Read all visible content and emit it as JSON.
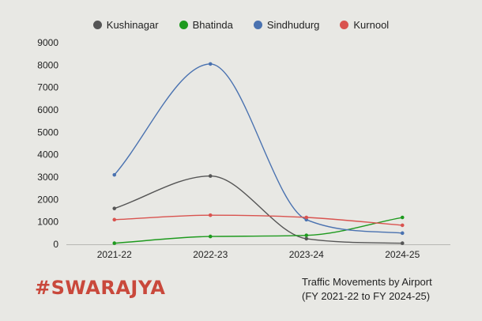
{
  "chart_data": {
    "type": "line",
    "categories": [
      "2021-22",
      "2022-23",
      "2023-24",
      "2024-25"
    ],
    "series": [
      {
        "name": "Kushinagar",
        "color": "#555555",
        "values": [
          1600,
          3050,
          250,
          50
        ]
      },
      {
        "name": "Bhatinda",
        "color": "#1e9a1e",
        "values": [
          50,
          350,
          400,
          1200
        ]
      },
      {
        "name": "Sindhudurg",
        "color": "#4a72b0",
        "values": [
          3100,
          8050,
          1100,
          500
        ]
      },
      {
        "name": "Kurnool",
        "color": "#d9534f",
        "values": [
          1100,
          1300,
          1200,
          850
        ]
      }
    ],
    "yticks": [
      0,
      1000,
      2000,
      3000,
      4000,
      5000,
      6000,
      7000,
      8000,
      9000
    ],
    "ylim": [
      0,
      9000
    ],
    "title": "Traffic Movements by Airport",
    "subtitle": "(FY 2021-22 to FY 2024-25)",
    "legend_position": "top-center",
    "grid": false
  },
  "brand": {
    "text": "#SWARAJYA",
    "color": "#c9483b"
  }
}
